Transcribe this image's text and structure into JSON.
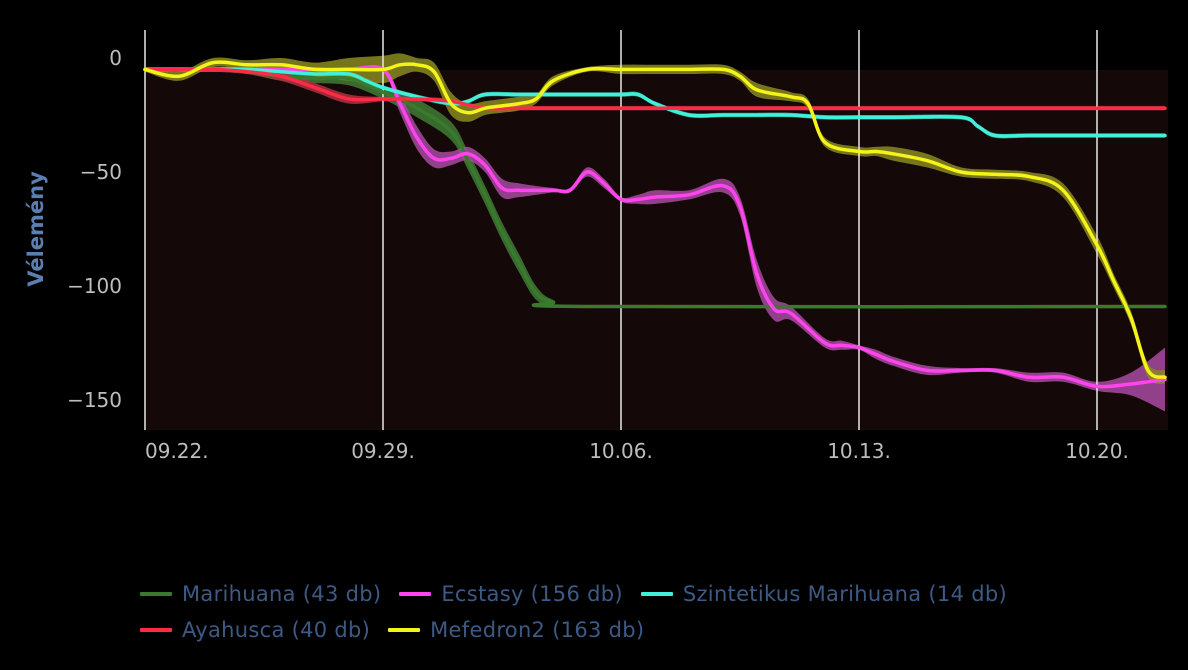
{
  "chart_data": {
    "type": "line",
    "ylabel": "Vélemény",
    "x_ticks": [
      "09.22.",
      "09.29.",
      "10.06.",
      "10.13.",
      "10.20."
    ],
    "xlim": [
      0,
      30
    ],
    "y_ticks": [
      0,
      -50,
      -100,
      -150
    ],
    "ylim": [
      -163,
      12
    ],
    "plot_background": "#140808",
    "series": [
      {
        "name": "Marihuana (43 db)",
        "color": "#3a7a2e",
        "band_color": "#3f7a34",
        "x": [
          0,
          1,
          2,
          3,
          4,
          5,
          6,
          7,
          8,
          9,
          9.5,
          10,
          10.5,
          11,
          11.5,
          12,
          13,
          30
        ],
        "y": [
          -5,
          -5,
          -5,
          -6,
          -8,
          -9,
          -9,
          -15,
          -22,
          -32,
          -45,
          -60,
          -76,
          -90,
          -103,
          -107,
          -109,
          -109
        ],
        "band": [
          1,
          1,
          1,
          1,
          2,
          2,
          3,
          3,
          4,
          4,
          4,
          4,
          4,
          4,
          3,
          1,
          0.5,
          0.5
        ]
      },
      {
        "name": "Ecstasy (156 db)",
        "color": "#ff44ee",
        "band_color": "#a84aa0",
        "x": [
          0,
          1,
          2,
          3,
          4,
          5,
          6,
          7,
          7.5,
          8,
          8.5,
          9,
          9.5,
          10,
          10.5,
          11,
          12,
          12.5,
          13,
          13.5,
          14,
          14.5,
          15,
          16,
          17,
          17.5,
          18,
          18.5,
          19,
          20,
          20.5,
          21,
          21.5,
          22,
          23,
          24,
          25,
          26,
          27,
          28,
          29,
          30
        ],
        "y": [
          -5,
          -5,
          -5,
          -5,
          -5,
          -5,
          -5,
          -5,
          -20,
          -35,
          -44,
          -44,
          -42,
          -47,
          -57,
          -58,
          -58,
          -58,
          -50,
          -55,
          -62,
          -62,
          -61,
          -60,
          -56,
          -65,
          -95,
          -110,
          -112,
          -125,
          -126,
          -127,
          -130,
          -133,
          -137,
          -137,
          -137,
          -140,
          -140,
          -144,
          -143,
          -141
        ],
        "band": [
          1,
          1,
          1,
          1,
          1,
          1,
          1,
          1,
          4,
          5,
          4,
          3,
          3,
          3,
          4,
          3,
          1,
          1,
          2,
          2,
          1,
          2,
          3,
          2,
          3,
          4,
          6,
          5,
          3,
          2,
          2,
          1,
          2,
          2,
          2,
          1,
          1,
          2,
          2,
          2,
          5,
          14
        ]
      },
      {
        "name": "Szintetikus Marihuana (14 db)",
        "color": "#40f0d8",
        "band_color": "#2aa090",
        "x": [
          0,
          1,
          2,
          3,
          4,
          5,
          6,
          6.5,
          7,
          8,
          9,
          9.5,
          10,
          11,
          12,
          13,
          14,
          14.5,
          15,
          16,
          17,
          18,
          19,
          20,
          21,
          22,
          24,
          24.5,
          25,
          26,
          28,
          30
        ],
        "y": [
          -5,
          -5,
          -5,
          -5,
          -6,
          -7,
          -7,
          -10,
          -13,
          -17,
          -20,
          -19,
          -16,
          -16,
          -16,
          -16,
          -16,
          -16,
          -20,
          -25,
          -25,
          -25,
          -25,
          -26,
          -26,
          -26,
          -26,
          -30,
          -34,
          -34,
          -34,
          -34
        ],
        "band": [
          1,
          1,
          1,
          1,
          1,
          1,
          1,
          1,
          1,
          1,
          1,
          1,
          1,
          1,
          1,
          1,
          1,
          1,
          1,
          1,
          1,
          1,
          1,
          1,
          1,
          1,
          1,
          1,
          1,
          1,
          1,
          1
        ]
      },
      {
        "name": "Ayahusca (40 db)",
        "color": "#ff2b46",
        "band_color": "#b03040",
        "x": [
          0,
          1,
          2,
          3,
          4,
          5,
          6,
          7,
          8,
          9,
          10,
          11,
          12,
          13,
          14,
          15,
          16,
          17,
          18,
          19,
          20,
          21,
          22,
          23,
          24,
          25,
          26,
          27,
          28,
          29,
          30
        ],
        "y": [
          -5,
          -5,
          -5,
          -6,
          -8,
          -13,
          -18,
          -18,
          -18,
          -19,
          -22,
          -22,
          -22,
          -22,
          -22,
          -22,
          -22,
          -22,
          -22,
          -22,
          -22,
          -22,
          -22,
          -22,
          -22,
          -22,
          -22,
          -22,
          -22,
          -22,
          -22
        ],
        "band": [
          1,
          1,
          1,
          1,
          2,
          2,
          2,
          1,
          1,
          1,
          1,
          1,
          1,
          1,
          1,
          1,
          1,
          1,
          1,
          1,
          1,
          1,
          1,
          1,
          1,
          1,
          1,
          1,
          1,
          1,
          1
        ]
      },
      {
        "name": "Mefedron2 (163 db)",
        "color": "#f4f41a",
        "band_color": "#8a8a20",
        "x": [
          0,
          1,
          2,
          3,
          4,
          5,
          6,
          7,
          7.5,
          8,
          8.5,
          9,
          9.5,
          10,
          10.5,
          11,
          11.5,
          12,
          13,
          14,
          15,
          16,
          17,
          17.5,
          18,
          19,
          19.5,
          20,
          21,
          21.5,
          22,
          23,
          24,
          25,
          26,
          27,
          28,
          28.5,
          29,
          29.5,
          30
        ],
        "y": [
          -5,
          -8,
          -2,
          -3,
          -3,
          -5,
          -5,
          -5,
          -3,
          -3,
          -6,
          -20,
          -24,
          -22,
          -21,
          -20,
          -18,
          -10,
          -5,
          -5,
          -5,
          -5,
          -5,
          -8,
          -14,
          -17,
          -20,
          -37,
          -41,
          -41,
          -42,
          -45,
          -50,
          -51,
          -52,
          -58,
          -82,
          -98,
          -114,
          -137,
          -140
        ],
        "band": [
          1,
          2,
          2,
          2,
          3,
          3,
          5,
          6,
          5,
          3,
          4,
          5,
          4,
          3,
          3,
          3,
          2,
          2,
          1,
          2,
          2,
          2,
          2,
          2,
          3,
          2,
          2,
          2,
          2,
          2,
          3,
          3,
          2,
          2,
          2,
          3,
          4,
          3,
          3,
          3,
          3
        ]
      }
    ]
  }
}
